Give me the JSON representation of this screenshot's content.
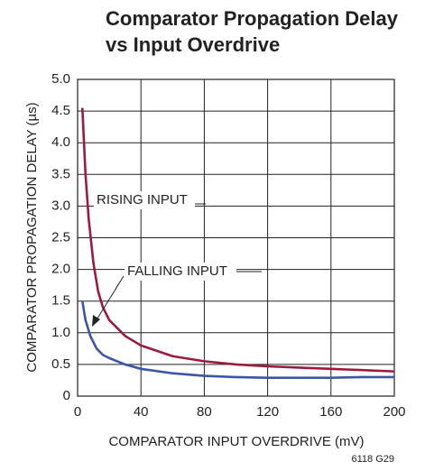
{
  "chart_data": {
    "type": "line",
    "title": [
      "Comparator Propagation Delay",
      "vs Input Overdrive"
    ],
    "xlabel": "COMPARATOR INPUT OVERDRIVE (mV)",
    "ylabel": "COMPARATOR PROPAGATION DELAY (µs)",
    "xlim": [
      0,
      200
    ],
    "xticks": [
      0,
      40,
      80,
      120,
      160,
      200
    ],
    "ylim": [
      0,
      5
    ],
    "yticks": [
      0,
      0.5,
      {
        "value": 1,
        "label": "1.0"
      },
      1.5,
      {
        "value": 2,
        "label": "2.0"
      },
      2.5,
      {
        "value": 3,
        "label": "3.0"
      },
      3.5,
      {
        "value": 4,
        "label": "4.0"
      },
      4.5,
      {
        "value": 5,
        "label": "5.0"
      }
    ],
    "grid": true,
    "series": [
      {
        "name": "RISING INPUT",
        "color": "#9b1b3f",
        "x": [
          3,
          5,
          7,
          10,
          13,
          16,
          20,
          30,
          40,
          60,
          80,
          100,
          120,
          140,
          160,
          180,
          200
        ],
        "values": [
          4.55,
          3.5,
          2.8,
          2.1,
          1.65,
          1.4,
          1.2,
          0.95,
          0.8,
          0.63,
          0.55,
          0.5,
          0.47,
          0.45,
          0.43,
          0.41,
          0.39
        ]
      },
      {
        "name": "FALLING INPUT",
        "color": "#3a56a8",
        "x": [
          3,
          5,
          8,
          12,
          16,
          20,
          30,
          40,
          60,
          80,
          100,
          120,
          140,
          160,
          180,
          200
        ],
        "values": [
          1.5,
          1.2,
          0.95,
          0.75,
          0.65,
          0.6,
          0.5,
          0.43,
          0.36,
          0.32,
          0.3,
          0.29,
          0.29,
          0.29,
          0.3,
          0.3
        ]
      }
    ],
    "note": "6118 G29"
  }
}
